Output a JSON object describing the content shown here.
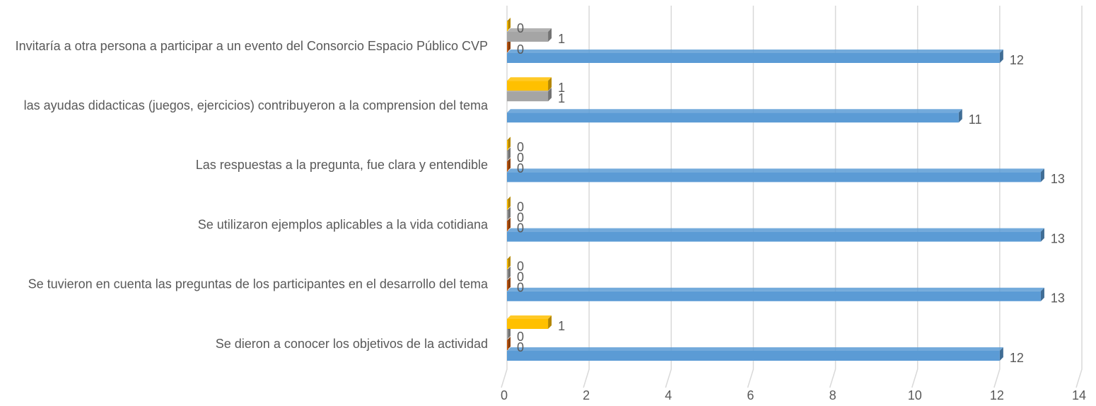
{
  "chart_data": {
    "type": "bar3d-horizontal",
    "categories": [
      "Se dieron a conocer los objetivos de la actividad",
      "Se tuvieron en cuenta las preguntas de los participantes en el desarrollo del tema",
      "Se utilizaron ejemplos aplicables a la vida cotidiana",
      "Las respuestas a la pregunta, fue clara y entendible",
      "las ayudas didacticas (juegos, ejercicios) contribuyeron a la comprension del tema",
      "Invitaría a otra persona a participar a un evento del Consorcio Espacio Público CVP"
    ],
    "series": [
      {
        "color": "#5b9bd5",
        "values": [
          12,
          13,
          13,
          13,
          11,
          12
        ]
      },
      {
        "color": "#c55a11",
        "values": [
          0,
          0,
          0,
          0,
          null,
          0
        ]
      },
      {
        "color": "#a5a5a5",
        "values": [
          0,
          0,
          0,
          0,
          1,
          1
        ]
      },
      {
        "color": "#ffc000",
        "values": [
          1,
          0,
          0,
          0,
          1,
          0
        ]
      }
    ],
    "xlim": [
      0,
      14
    ],
    "xticks": [
      0,
      2,
      4,
      6,
      8,
      10,
      12,
      14
    ],
    "grid": true
  }
}
